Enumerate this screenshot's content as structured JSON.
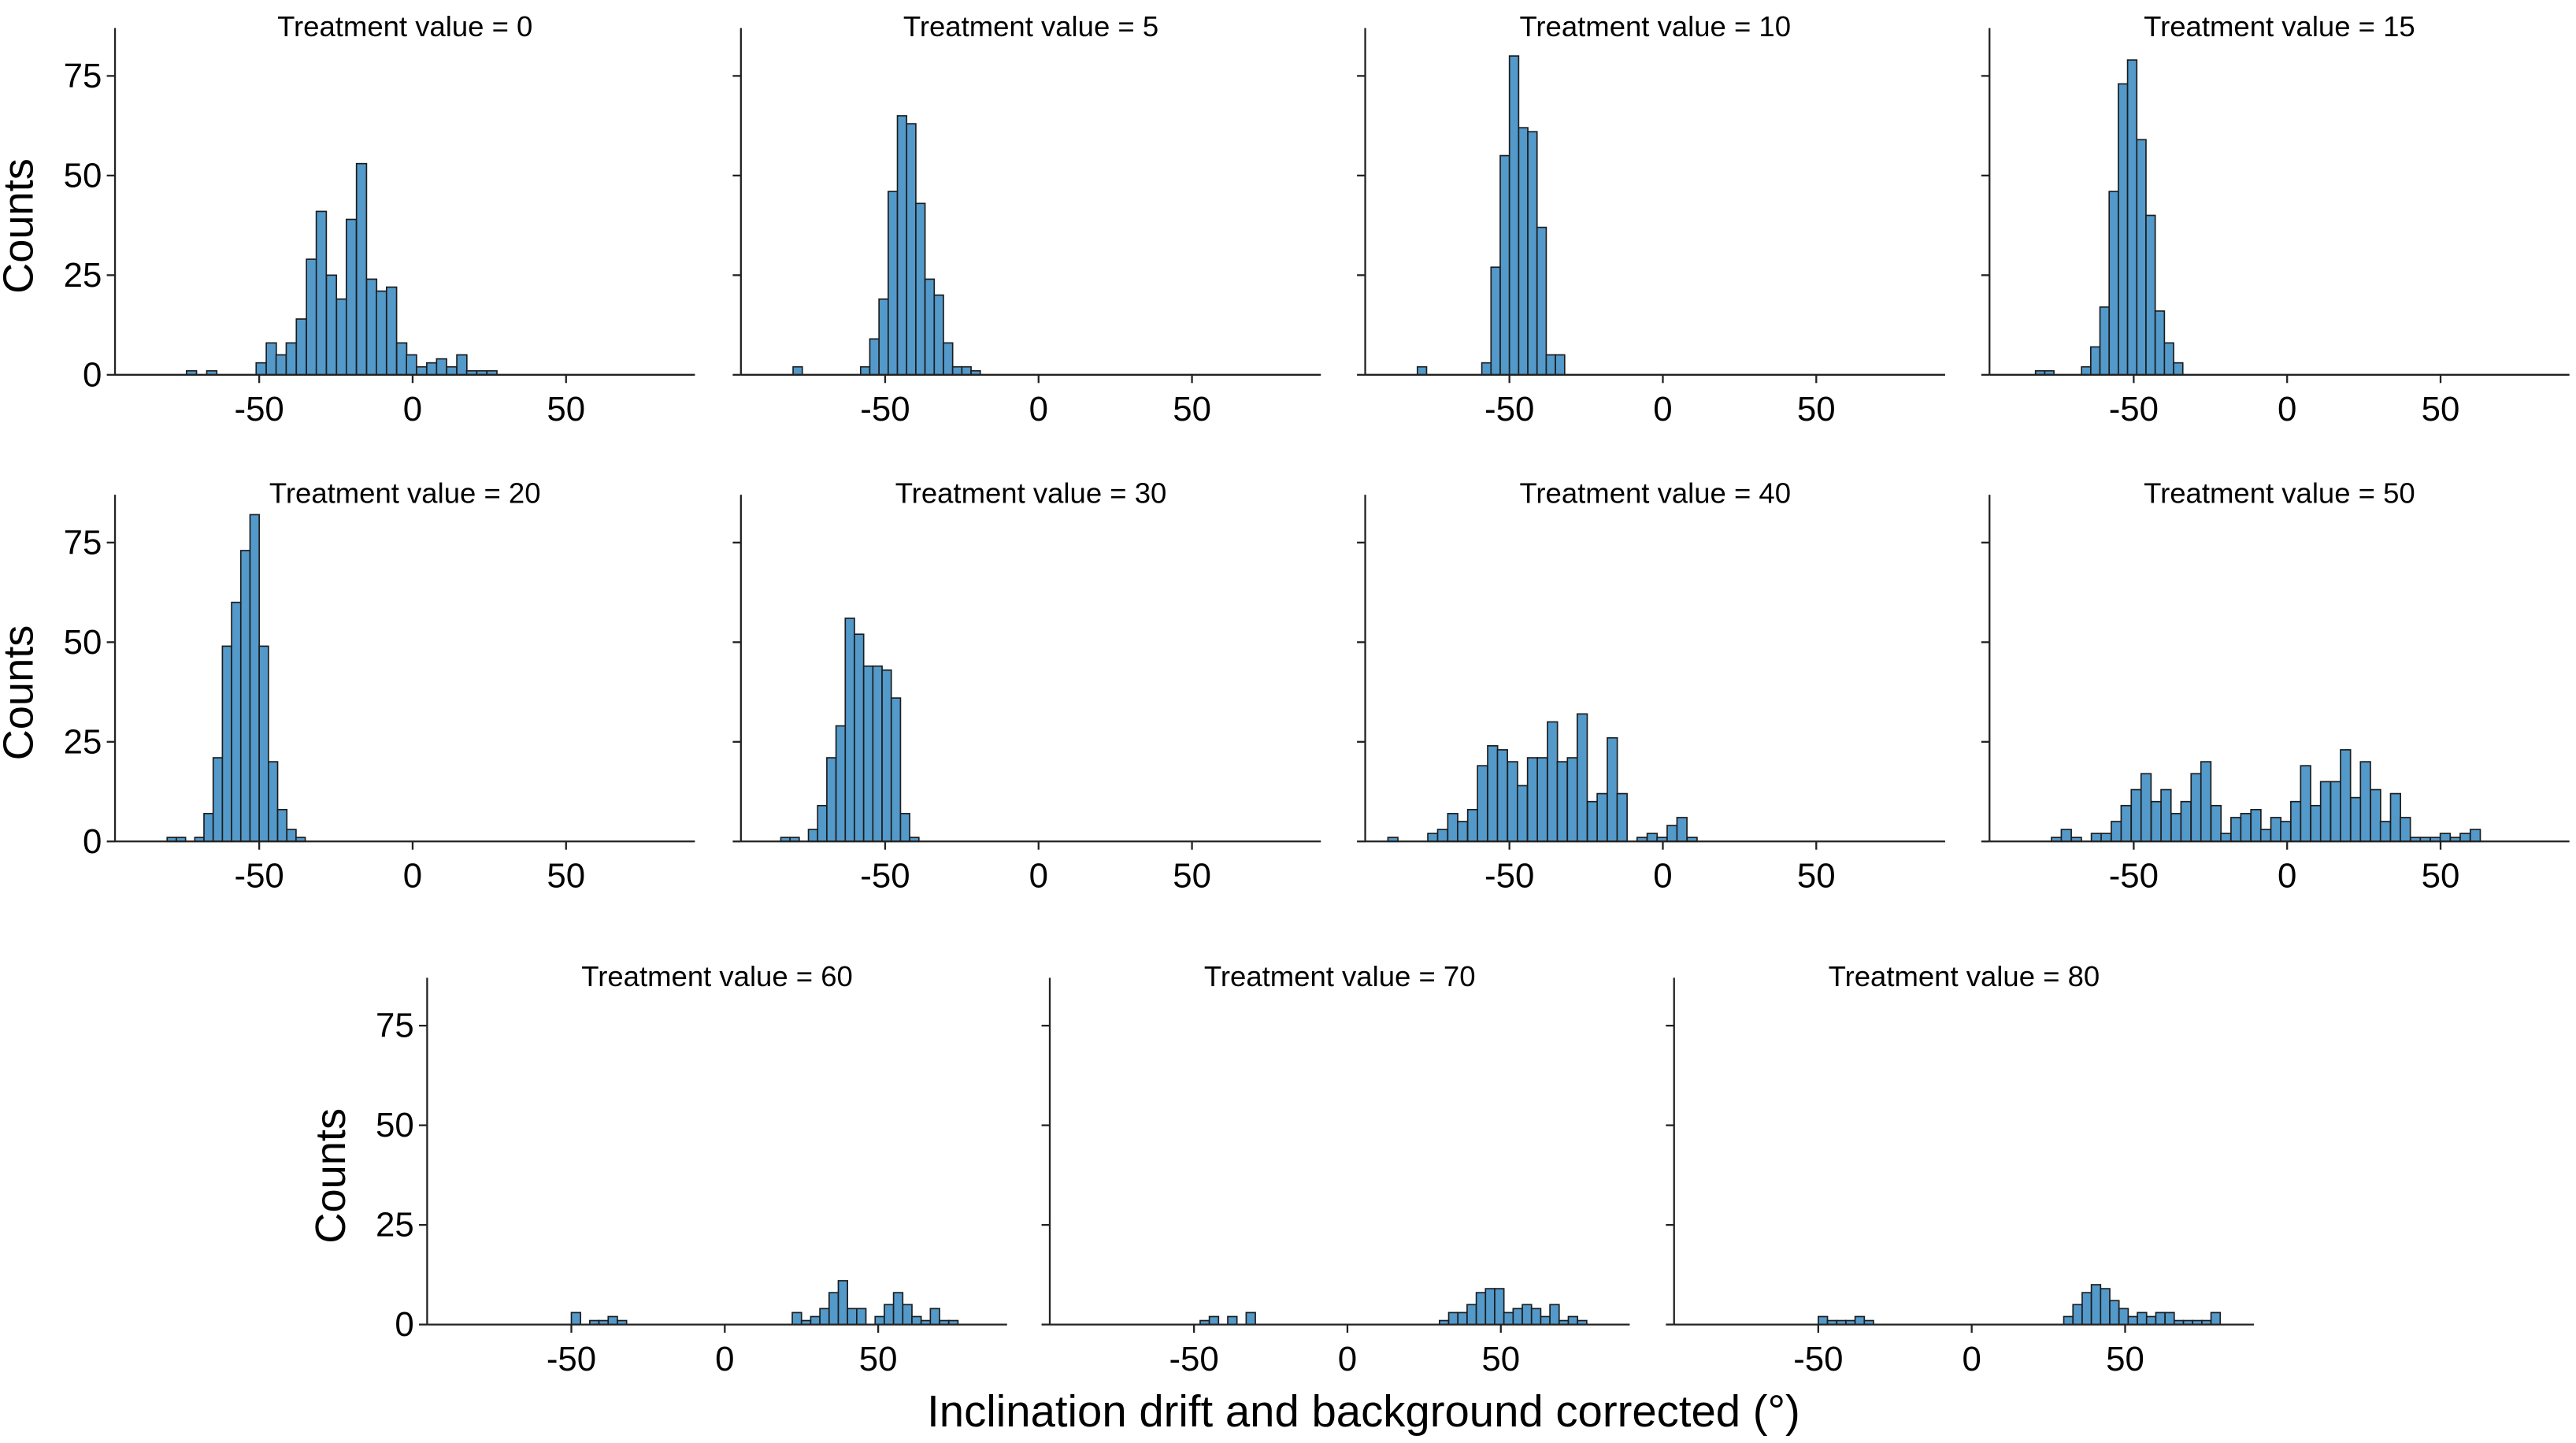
{
  "chart_data": {
    "type": "bar",
    "subtype": "histogram-facet-grid",
    "xlabel": "Inclination drift and background corrected (°)",
    "ylabel": "Counts",
    "xlim": [
      -97,
      92
    ],
    "ylim": [
      0,
      87
    ],
    "xticks": [
      -50,
      0,
      50
    ],
    "yticks": [
      0,
      25,
      50,
      75
    ],
    "bar_color": "#5399c9",
    "edge_color": "#1c1c1c",
    "panels": [
      {
        "title": "Treatment value = 0",
        "bin_width": 3.27,
        "bins": [
          [
            -73.7,
            1
          ],
          [
            -67.1,
            1
          ],
          [
            -51.0,
            3
          ],
          [
            -47.7,
            8
          ],
          [
            -44.5,
            5
          ],
          [
            -41.2,
            8
          ],
          [
            -37.9,
            14
          ],
          [
            -34.6,
            29
          ],
          [
            -31.4,
            41
          ],
          [
            -28.1,
            25
          ],
          [
            -24.8,
            19
          ],
          [
            -21.6,
            39
          ],
          [
            -18.3,
            53
          ],
          [
            -15.0,
            24
          ],
          [
            -11.8,
            21
          ],
          [
            -8.5,
            22
          ],
          [
            -5.2,
            8
          ],
          [
            -2.0,
            5
          ],
          [
            1.3,
            2
          ],
          [
            4.6,
            3
          ],
          [
            7.8,
            4
          ],
          [
            11.1,
            2
          ],
          [
            14.4,
            5
          ],
          [
            17.6,
            1
          ],
          [
            20.9,
            1
          ],
          [
            24.2,
            1
          ]
        ]
      },
      {
        "title": "Treatment value = 5",
        "bin_width": 3.0,
        "bins": [
          [
            -80,
            2
          ],
          [
            -58,
            2
          ],
          [
            -55,
            9
          ],
          [
            -52,
            19
          ],
          [
            -49,
            46
          ],
          [
            -46,
            65
          ],
          [
            -43,
            63
          ],
          [
            -40,
            43
          ],
          [
            -37,
            24
          ],
          [
            -34,
            20
          ],
          [
            -31,
            8
          ],
          [
            -28,
            2
          ],
          [
            -25,
            2
          ],
          [
            -22,
            1
          ]
        ]
      },
      {
        "title": "Treatment value = 10",
        "bin_width": 3.0,
        "bins": [
          [
            -80,
            2
          ],
          [
            -59,
            3
          ],
          [
            -56,
            27
          ],
          [
            -53,
            55
          ],
          [
            -50,
            80
          ],
          [
            -47,
            62
          ],
          [
            -44,
            61
          ],
          [
            -41,
            37
          ],
          [
            -38,
            5
          ],
          [
            -35,
            5
          ]
        ]
      },
      {
        "title": "Treatment value = 15",
        "bin_width": 3.0,
        "bins": [
          [
            -82,
            1
          ],
          [
            -79,
            1
          ],
          [
            -67,
            2
          ],
          [
            -64,
            7
          ],
          [
            -61,
            17
          ],
          [
            -58,
            46
          ],
          [
            -55,
            73
          ],
          [
            -52,
            79
          ],
          [
            -49,
            59
          ],
          [
            -46,
            40
          ],
          [
            -43,
            16
          ],
          [
            -40,
            8
          ],
          [
            -37,
            3
          ]
        ]
      },
      {
        "title": "Treatment value = 20",
        "bin_width": 3.0,
        "bins": [
          [
            -80,
            1
          ],
          [
            -77,
            1
          ],
          [
            -71,
            1
          ],
          [
            -68,
            7
          ],
          [
            -65,
            21
          ],
          [
            -62,
            49
          ],
          [
            -59,
            60
          ],
          [
            -56,
            73
          ],
          [
            -53,
            82
          ],
          [
            -50,
            49
          ],
          [
            -47,
            20
          ],
          [
            -44,
            8
          ],
          [
            -41,
            3
          ],
          [
            -38,
            1
          ]
        ]
      },
      {
        "title": "Treatment value = 30",
        "bin_width": 3.0,
        "bins": [
          [
            -84,
            1
          ],
          [
            -81,
            1
          ],
          [
            -75,
            3
          ],
          [
            -72,
            9
          ],
          [
            -69,
            21
          ],
          [
            -66,
            29
          ],
          [
            -63,
            56
          ],
          [
            -60,
            52
          ],
          [
            -57,
            44
          ],
          [
            -54,
            44
          ],
          [
            -51,
            43
          ],
          [
            -48,
            36
          ],
          [
            -45,
            7
          ],
          [
            -42,
            1
          ]
        ]
      },
      {
        "title": "Treatment value = 40",
        "bin_width": 3.25,
        "bins": [
          [
            -89.6,
            1
          ],
          [
            -76.6,
            2
          ],
          [
            -73.4,
            3
          ],
          [
            -70.1,
            7
          ],
          [
            -66.9,
            5
          ],
          [
            -63.6,
            8
          ],
          [
            -60.4,
            19
          ],
          [
            -57.1,
            24
          ],
          [
            -53.9,
            23
          ],
          [
            -50.6,
            20
          ],
          [
            -47.4,
            14
          ],
          [
            -44.1,
            21
          ],
          [
            -40.9,
            21
          ],
          [
            -37.6,
            30
          ],
          [
            -34.4,
            20
          ],
          [
            -31.1,
            21
          ],
          [
            -27.9,
            32
          ],
          [
            -24.6,
            10
          ],
          [
            -21.4,
            12
          ],
          [
            -18.1,
            26
          ],
          [
            -14.9,
            12
          ],
          [
            -8.4,
            1
          ],
          [
            -5.1,
            2
          ],
          [
            -1.9,
            1
          ],
          [
            1.4,
            4
          ],
          [
            4.6,
            6
          ],
          [
            7.9,
            1
          ]
        ]
      },
      {
        "title": "Treatment value = 50",
        "bin_width": 3.25,
        "bins": [
          [
            -76.8,
            1
          ],
          [
            -73.6,
            3
          ],
          [
            -70.3,
            1
          ],
          [
            -63.8,
            2
          ],
          [
            -60.6,
            2
          ],
          [
            -57.3,
            5
          ],
          [
            -54.1,
            9
          ],
          [
            -50.8,
            13
          ],
          [
            -47.6,
            17
          ],
          [
            -44.3,
            10
          ],
          [
            -41.1,
            13
          ],
          [
            -37.8,
            7
          ],
          [
            -34.6,
            10
          ],
          [
            -31.3,
            17
          ],
          [
            -28.1,
            20
          ],
          [
            -24.8,
            9
          ],
          [
            -21.6,
            2
          ],
          [
            -18.3,
            6
          ],
          [
            -15.1,
            7
          ],
          [
            -11.8,
            8
          ],
          [
            -8.6,
            3
          ],
          [
            -5.3,
            6
          ],
          [
            -2.1,
            5
          ],
          [
            1.2,
            10
          ],
          [
            4.4,
            19
          ],
          [
            7.7,
            9
          ],
          [
            10.9,
            15
          ],
          [
            14.2,
            15
          ],
          [
            17.4,
            23
          ],
          [
            20.7,
            11
          ],
          [
            23.9,
            20
          ],
          [
            27.2,
            13
          ],
          [
            30.4,
            5
          ],
          [
            33.7,
            12
          ],
          [
            36.9,
            6
          ],
          [
            40.2,
            1
          ],
          [
            43.4,
            1
          ],
          [
            46.7,
            1
          ],
          [
            49.9,
            2
          ],
          [
            53.2,
            1
          ],
          [
            56.4,
            2
          ],
          [
            59.7,
            3
          ]
        ]
      },
      {
        "title": "Treatment value = 60",
        "bin_width": 3.0,
        "bins": [
          [
            -50,
            3
          ],
          [
            -44,
            1
          ],
          [
            -41,
            1
          ],
          [
            -38,
            2
          ],
          [
            -35,
            1
          ],
          [
            22,
            3
          ],
          [
            25,
            1
          ],
          [
            28,
            2
          ],
          [
            31,
            4
          ],
          [
            34,
            8
          ],
          [
            37,
            11
          ],
          [
            40,
            4
          ],
          [
            43,
            4
          ],
          [
            49,
            2
          ],
          [
            52,
            5
          ],
          [
            55,
            8
          ],
          [
            58,
            5
          ],
          [
            61,
            2
          ],
          [
            64,
            1
          ],
          [
            67,
            4
          ],
          [
            70,
            1
          ],
          [
            73,
            1
          ]
        ]
      },
      {
        "title": "Treatment value = 70",
        "bin_width": 3.0,
        "bins": [
          [
            -48,
            1
          ],
          [
            -45,
            2
          ],
          [
            -39,
            2
          ],
          [
            -33,
            3
          ],
          [
            30,
            1
          ],
          [
            33,
            3
          ],
          [
            36,
            3
          ],
          [
            39,
            5
          ],
          [
            42,
            8
          ],
          [
            45,
            9
          ],
          [
            48,
            9
          ],
          [
            51,
            3
          ],
          [
            54,
            4
          ],
          [
            57,
            5
          ],
          [
            60,
            4
          ],
          [
            63,
            2
          ],
          [
            66,
            5
          ],
          [
            69,
            1
          ],
          [
            72,
            2
          ],
          [
            75,
            1
          ]
        ]
      },
      {
        "title": "Treatment value = 80",
        "bin_width": 3.0,
        "bins": [
          [
            -50,
            2
          ],
          [
            -47,
            1
          ],
          [
            -44,
            1
          ],
          [
            -41,
            1
          ],
          [
            -38,
            2
          ],
          [
            -35,
            1
          ],
          [
            30,
            2
          ],
          [
            33,
            5
          ],
          [
            36,
            8
          ],
          [
            39,
            10
          ],
          [
            42,
            9
          ],
          [
            45,
            6
          ],
          [
            48,
            4
          ],
          [
            51,
            2
          ],
          [
            54,
            3
          ],
          [
            57,
            2
          ],
          [
            60,
            3
          ],
          [
            63,
            3
          ],
          [
            66,
            1
          ],
          [
            69,
            1
          ],
          [
            72,
            1
          ],
          [
            75,
            1
          ],
          [
            78,
            3
          ]
        ]
      }
    ]
  }
}
